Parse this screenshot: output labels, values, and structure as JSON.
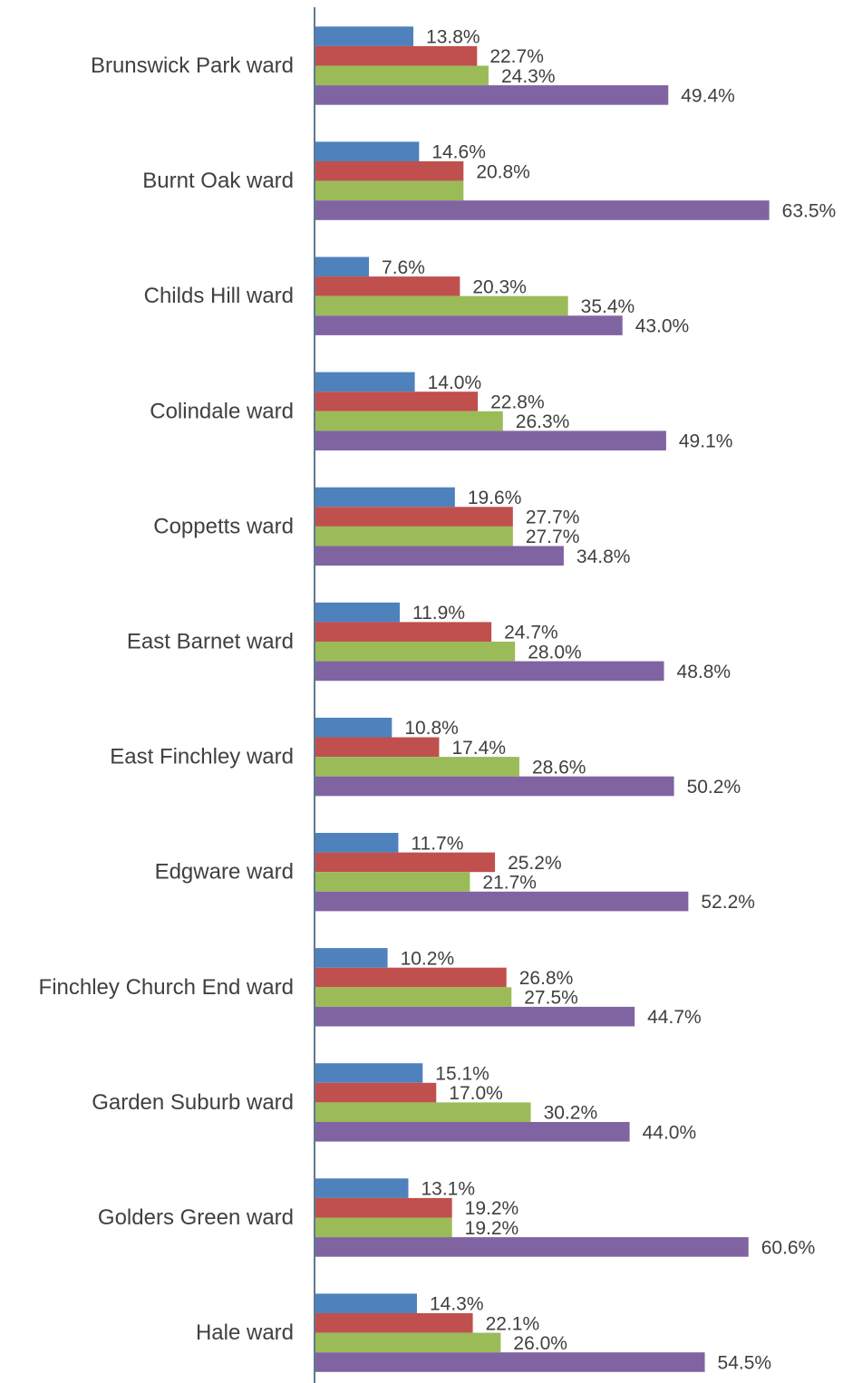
{
  "chart_data": {
    "type": "bar",
    "orientation": "horizontal",
    "categories": [
      "Brunswick Park ward",
      "Burnt Oak ward",
      "Childs Hill ward",
      "Colindale ward",
      "Coppetts ward",
      "East Barnet ward",
      "East Finchley ward",
      "Edgware ward",
      "Finchley Church End ward",
      "Garden Suburb ward",
      "Golders Green ward",
      "Hale ward"
    ],
    "series": [
      {
        "color": "#4F81BD",
        "values": [
          13.8,
          14.6,
          7.6,
          14.0,
          19.6,
          11.9,
          10.8,
          11.7,
          10.2,
          15.1,
          13.1,
          14.3
        ]
      },
      {
        "color": "#C0504D",
        "values": [
          22.7,
          20.8,
          20.3,
          22.8,
          27.7,
          24.7,
          17.4,
          25.2,
          26.8,
          17.0,
          19.2,
          22.1
        ]
      },
      {
        "color": "#9BBB59",
        "values": [
          24.3,
          20.8,
          35.4,
          26.3,
          27.7,
          28.0,
          28.6,
          21.7,
          27.5,
          30.2,
          19.2,
          26.0
        ]
      },
      {
        "color": "#8064A2",
        "values": [
          49.4,
          63.5,
          43.0,
          49.1,
          34.8,
          48.8,
          50.2,
          52.2,
          44.7,
          44.0,
          60.6,
          54.5
        ]
      }
    ],
    "data_labels": [
      [
        "13.8%",
        "14.6%",
        "7.6%",
        "14.0%",
        "19.6%",
        "11.9%",
        "10.8%",
        "11.7%",
        "10.2%",
        "15.1%",
        "13.1%",
        "14.3%"
      ],
      [
        "22.7%",
        "20.8%",
        "20.3%",
        "22.8%",
        "27.7%",
        "24.7%",
        "17.4%",
        "25.2%",
        "26.8%",
        "17.0%",
        "19.2%",
        "22.1%"
      ],
      [
        "24.3%",
        "",
        "35.4%",
        "26.3%",
        "27.7%",
        "28.0%",
        "28.6%",
        "21.7%",
        "27.5%",
        "30.2%",
        "19.2%",
        "26.0%"
      ],
      [
        "49.4%",
        "63.5%",
        "43.0%",
        "49.1%",
        "34.8%",
        "48.8%",
        "50.2%",
        "52.2%",
        "44.7%",
        "44.0%",
        "60.6%",
        "54.5%"
      ]
    ],
    "xlim": [
      0,
      70
    ],
    "axis_color": "#5F7891",
    "label_color": "#404040",
    "grid": false,
    "legend": "none"
  }
}
